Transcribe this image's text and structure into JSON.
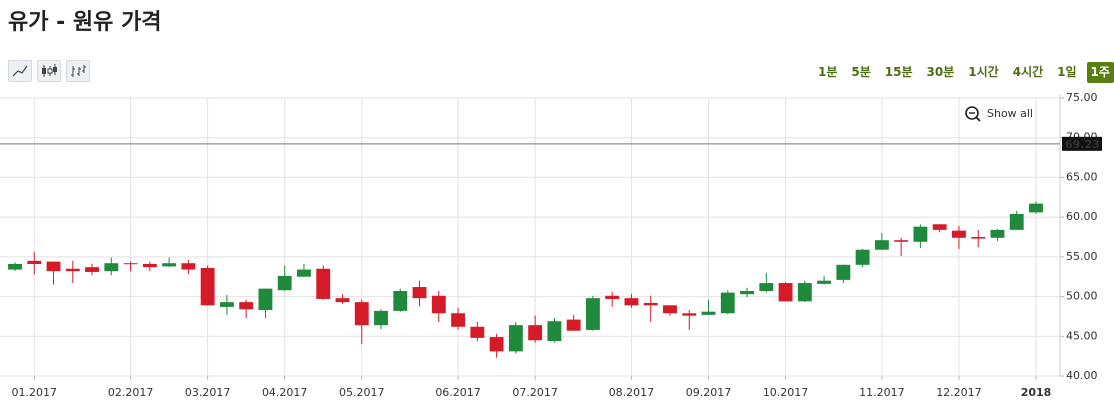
{
  "chart_data": {
    "type": "candlestick",
    "title": "유가 - 원유 가격",
    "intervals": [
      "1분",
      "5분",
      "15분",
      "30분",
      "1시간",
      "4시간",
      "1일",
      "1주"
    ],
    "show_all": "Show all",
    "current_price": 69.23,
    "up_color": "#208a3c",
    "down_color": "#d51a28",
    "grid": true,
    "ylim": [
      40,
      75
    ],
    "yticks": [
      {
        "value": 40,
        "label": "40.00"
      },
      {
        "value": 45,
        "label": "45.00"
      },
      {
        "value": 50,
        "label": "50.00"
      },
      {
        "value": 55,
        "label": "55.00"
      },
      {
        "value": 60,
        "label": "60.00"
      },
      {
        "value": 65,
        "label": "65.00"
      },
      {
        "value": 70,
        "label": "70.00"
      },
      {
        "value": 75,
        "label": "75.00"
      }
    ],
    "xticks": [
      {
        "value": 1,
        "label": "01.2017"
      },
      {
        "value": 6,
        "label": "02.2017"
      },
      {
        "value": 10,
        "label": "03.2017"
      },
      {
        "value": 14,
        "label": "04.2017"
      },
      {
        "value": 18,
        "label": "05.2017"
      },
      {
        "value": 23,
        "label": "06.2017"
      },
      {
        "value": 27,
        "label": "07.2017"
      },
      {
        "value": 32,
        "label": "08.2017"
      },
      {
        "value": 36,
        "label": "09.2017"
      },
      {
        "value": 40,
        "label": "10.2017"
      },
      {
        "value": 45,
        "label": "11.2017"
      },
      {
        "value": 49,
        "label": "12.2017"
      },
      {
        "value": 53,
        "label": "2018"
      }
    ],
    "open": [
      53.4,
      54.5,
      54.4,
      53.5,
      53.7,
      53.2,
      54.2,
      54.1,
      53.8,
      54.2,
      53.6,
      48.7,
      49.3,
      48.3,
      50.8,
      52.5,
      53.5,
      49.8,
      49.3,
      46.4,
      48.2,
      51.2,
      50.1,
      47.9,
      46.2,
      44.9,
      43.1,
      46.4,
      44.4,
      47.1,
      45.8,
      50.1,
      49.8,
      49.2,
      48.9,
      47.9,
      47.7,
      47.9,
      50.3,
      50.7,
      51.7,
      49.4,
      51.6,
      52.1,
      54.0,
      55.9,
      57.1,
      56.9,
      59.1,
      58.3,
      57.5,
      57.4,
      58.4,
      60.6
    ],
    "high": [
      54.3,
      55.6,
      54.4,
      54.5,
      54.1,
      54.9,
      54.4,
      54.4,
      54.9,
      54.6,
      53.9,
      50.2,
      49.6,
      51.0,
      53.9,
      54.1,
      53.9,
      50.3,
      49.6,
      48.4,
      51.0,
      52.0,
      50.7,
      48.6,
      46.8,
      45.3,
      46.8,
      47.6,
      47.3,
      47.7,
      50.1,
      50.6,
      50.3,
      50.1,
      48.9,
      48.3,
      49.6,
      50.8,
      51.1,
      53.0,
      51.8,
      52.0,
      52.6,
      54.0,
      56.0,
      58.0,
      57.4,
      59.1,
      59.1,
      58.9,
      58.4,
      58.5,
      60.8,
      62.0
    ],
    "low": [
      53.2,
      52.8,
      51.5,
      51.7,
      52.7,
      52.7,
      53.2,
      53.2,
      53.7,
      52.8,
      48.9,
      47.7,
      47.3,
      47.3,
      50.7,
      52.5,
      49.6,
      49.1,
      44.0,
      45.9,
      48.1,
      48.8,
      46.8,
      45.8,
      44.4,
      42.3,
      42.8,
      44.2,
      44.2,
      45.7,
      45.7,
      48.7,
      48.6,
      46.8,
      47.6,
      45.8,
      47.7,
      47.8,
      49.9,
      50.5,
      49.4,
      49.3,
      51.5,
      51.7,
      53.7,
      55.9,
      55.1,
      56.1,
      58.1,
      56.0,
      56.2,
      57.0,
      58.4,
      60.4
    ],
    "close": [
      54.1,
      54.1,
      53.2,
      53.2,
      53.1,
      54.2,
      54.1,
      53.7,
      54.2,
      53.4,
      48.9,
      49.3,
      48.4,
      51.0,
      52.6,
      53.4,
      49.7,
      49.3,
      46.4,
      48.2,
      50.7,
      49.8,
      47.9,
      46.2,
      44.8,
      43.1,
      46.4,
      44.5,
      46.9,
      45.7,
      49.8,
      49.7,
      48.9,
      48.9,
      47.9,
      47.6,
      48.1,
      50.5,
      50.7,
      51.7,
      49.4,
      51.7,
      52.0,
      54.0,
      55.9,
      57.1,
      56.9,
      58.8,
      58.4,
      57.4,
      57.3,
      58.4,
      60.4,
      61.7
    ]
  }
}
